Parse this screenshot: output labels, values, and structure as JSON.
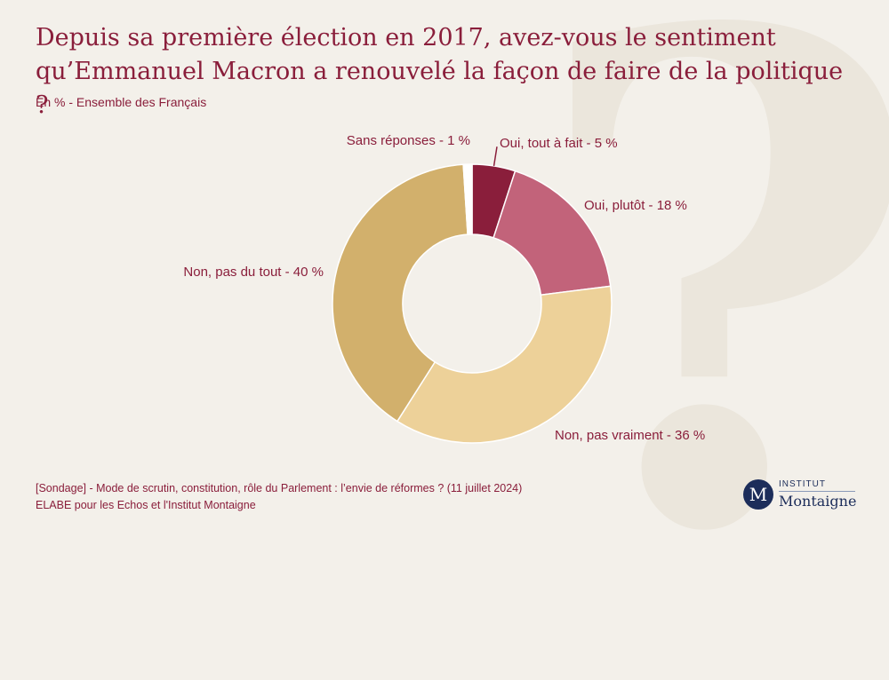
{
  "header": {
    "title": "Depuis sa première élection en 2017, avez-vous le sentiment qu’Emmanuel Macron a renouvelé la façon de faire de la politique ?",
    "subtitle": "En % - Ensemble des Français"
  },
  "chart_data": {
    "type": "pie",
    "variant": "donut",
    "unit": "%",
    "slices": [
      {
        "name": "Oui, tout à fait",
        "value": 5,
        "label": "Oui, tout à fait - 5 %",
        "color": "#8a1e3b"
      },
      {
        "name": "Oui, plutôt",
        "value": 18,
        "label": "Oui, plutôt - 18 %",
        "color": "#c2637a"
      },
      {
        "name": "Non, pas vraiment",
        "value": 36,
        "label": "Non, pas vraiment - 36 %",
        "color": "#edd199"
      },
      {
        "name": "Non, pas du tout",
        "value": 40,
        "label": "Non, pas du tout - 40 %",
        "color": "#d2b06c"
      },
      {
        "name": "Sans réponses",
        "value": 1,
        "label": "Sans réponses - 1 %",
        "color": "#ffffff"
      }
    ]
  },
  "footer": {
    "source_line1": "[Sondage] - Mode de scrutin, constitution, rôle du Parlement : l’envie de réformes ? (11 juillet 2024)",
    "source_line2": "ELABE pour les Echos et l'Institut Montaigne"
  },
  "logo": {
    "monogram": "M",
    "top": "INSTITUT",
    "bottom": "Montaigne"
  },
  "background": {
    "glyph": "?"
  }
}
